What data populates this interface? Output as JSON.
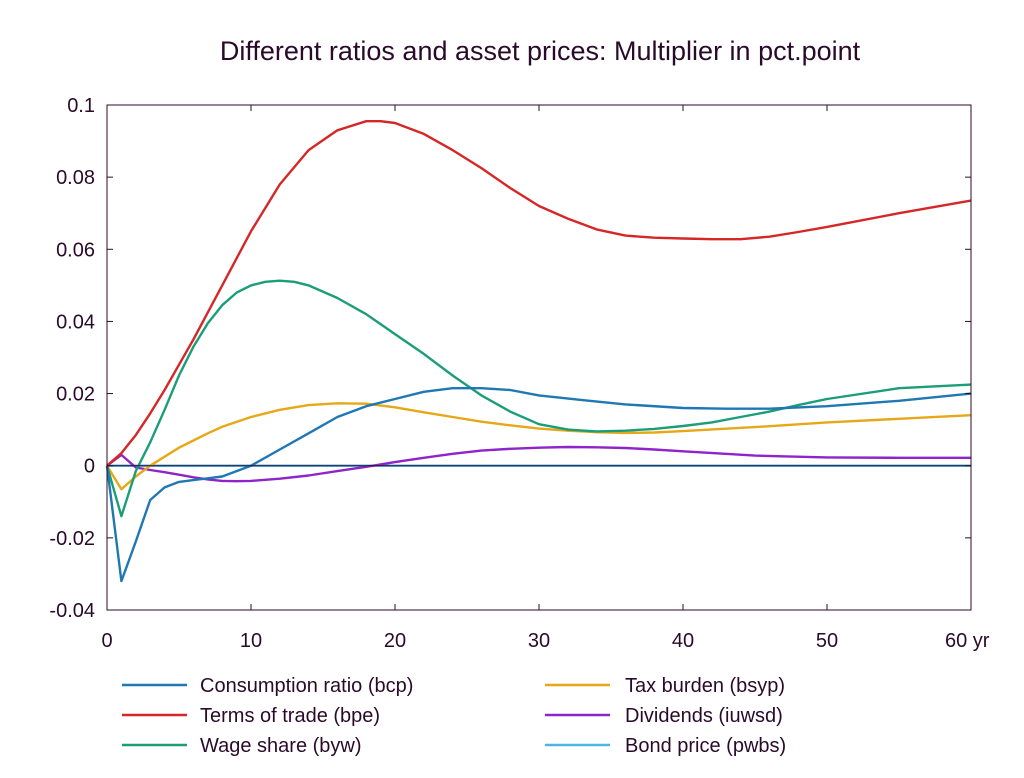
{
  "chart_data": {
    "type": "line",
    "title": "Different ratios and asset prices: Multiplier in pct.point",
    "x_unit_label": "yr",
    "xlim": [
      0,
      60
    ],
    "ylim": [
      -0.04,
      0.1
    ],
    "x_ticks": [
      0,
      10,
      20,
      30,
      40,
      50,
      60
    ],
    "x_tick_labels": [
      "0",
      "10",
      "20",
      "30",
      "40",
      "50",
      "60 yr"
    ],
    "y_ticks": [
      -0.04,
      -0.02,
      0,
      0.02,
      0.04,
      0.06,
      0.08,
      0.1
    ],
    "y_tick_labels": [
      "-0.04",
      "-0.02",
      "0",
      "0.02",
      "0.04",
      "0.06",
      "0.08",
      "0.1"
    ],
    "grid": false,
    "legend_position": "bottom",
    "series": [
      {
        "name": "Consumption ratio (bcp)",
        "color": "#1f77b4",
        "x": [
          0,
          1,
          2,
          3,
          4,
          5,
          6,
          7,
          8,
          9,
          10,
          12,
          14,
          16,
          18,
          20,
          22,
          24,
          26,
          28,
          30,
          33,
          36,
          40,
          43,
          46,
          50,
          55,
          60
        ],
        "y": [
          0,
          -0.032,
          -0.021,
          -0.0095,
          -0.006,
          -0.0045,
          -0.004,
          -0.0035,
          -0.003,
          -0.0015,
          0,
          0.0045,
          0.009,
          0.0135,
          0.0165,
          0.0185,
          0.0205,
          0.0215,
          0.0215,
          0.021,
          0.0195,
          0.0182,
          0.017,
          0.016,
          0.0158,
          0.0158,
          0.0165,
          0.018,
          0.02
        ]
      },
      {
        "name": "Terms of trade (bpe)",
        "color": "#d62728",
        "x": [
          0,
          1,
          2,
          3,
          4,
          5,
          6,
          7,
          8,
          10,
          12,
          14,
          16,
          18,
          19,
          20,
          22,
          24,
          26,
          28,
          30,
          32,
          34,
          36,
          38,
          40,
          42,
          44,
          46,
          48,
          50,
          55,
          60
        ],
        "y": [
          0,
          0.0035,
          0.0085,
          0.0145,
          0.021,
          0.028,
          0.035,
          0.0425,
          0.05,
          0.065,
          0.078,
          0.0875,
          0.093,
          0.0955,
          0.0955,
          0.095,
          0.092,
          0.0875,
          0.0825,
          0.077,
          0.072,
          0.0685,
          0.0655,
          0.0638,
          0.0632,
          0.063,
          0.0628,
          0.0628,
          0.0635,
          0.0648,
          0.0662,
          0.07,
          0.0735
        ]
      },
      {
        "name": "Wage share (byw)",
        "color": "#1b9e77",
        "x": [
          0,
          1,
          2,
          3,
          4,
          5,
          6,
          7,
          8,
          9,
          10,
          11,
          12,
          13,
          14,
          16,
          18,
          20,
          22,
          24,
          26,
          28,
          30,
          32,
          34,
          36,
          38,
          40,
          42,
          44,
          46,
          48,
          50,
          55,
          60
        ],
        "y": [
          0,
          -0.014,
          -0.0015,
          0.0065,
          0.0155,
          0.025,
          0.033,
          0.0395,
          0.0445,
          0.048,
          0.05,
          0.051,
          0.0513,
          0.051,
          0.05,
          0.0465,
          0.042,
          0.0365,
          0.031,
          0.025,
          0.0195,
          0.015,
          0.0115,
          0.01,
          0.0095,
          0.0097,
          0.0102,
          0.011,
          0.012,
          0.0135,
          0.015,
          0.0168,
          0.0185,
          0.0215,
          0.0225
        ]
      },
      {
        "name": "Tax burden (bsyp)",
        "color": "#e6a817",
        "x": [
          0,
          1,
          2,
          3,
          4,
          5,
          6,
          7,
          8,
          10,
          12,
          14,
          16,
          18,
          20,
          22,
          24,
          26,
          28,
          30,
          32,
          34,
          36,
          38,
          40,
          45,
          50,
          55,
          60
        ],
        "y": [
          0,
          -0.0065,
          -0.003,
          0,
          0.0025,
          0.005,
          0.007,
          0.009,
          0.0108,
          0.0135,
          0.0155,
          0.0168,
          0.0173,
          0.0172,
          0.0162,
          0.0148,
          0.0135,
          0.0122,
          0.0112,
          0.0103,
          0.0097,
          0.0093,
          0.0091,
          0.0092,
          0.0096,
          0.0107,
          0.012,
          0.013,
          0.014
        ]
      },
      {
        "name": "Dividends (iuwsd)",
        "color": "#8e24c9",
        "x": [
          0,
          1,
          2,
          3,
          4,
          5,
          6,
          7,
          8,
          9,
          10,
          12,
          14,
          16,
          18,
          20,
          22,
          24,
          26,
          28,
          30,
          32,
          34,
          36,
          38,
          40,
          45,
          50,
          55,
          60
        ],
        "y": [
          0,
          0.003,
          -0.0005,
          -0.0012,
          -0.0018,
          -0.0025,
          -0.0032,
          -0.0038,
          -0.0042,
          -0.0043,
          -0.0042,
          -0.0036,
          -0.0027,
          -0.0015,
          -0.0003,
          0.001,
          0.0022,
          0.0033,
          0.0042,
          0.0047,
          0.005,
          0.0052,
          0.0051,
          0.0049,
          0.0045,
          0.004,
          0.0028,
          0.0023,
          0.0022,
          0.0022
        ]
      },
      {
        "name": "Bond price (pwbs)",
        "color": "#4db6e6",
        "x": [
          0,
          60
        ],
        "y": [
          0,
          0
        ]
      }
    ]
  }
}
